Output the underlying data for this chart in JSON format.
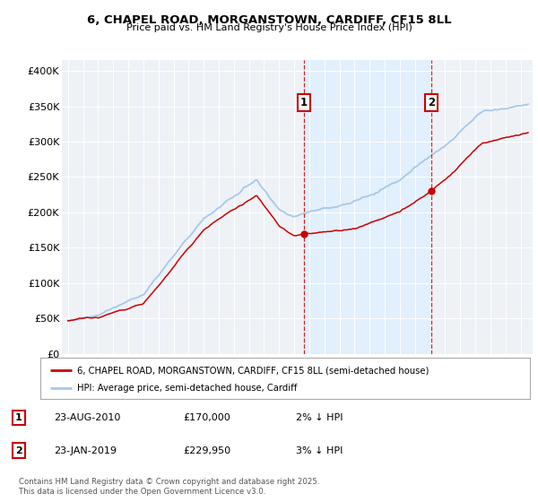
{
  "title": "6, CHAPEL ROAD, MORGANSTOWN, CARDIFF, CF15 8LL",
  "subtitle": "Price paid vs. HM Land Registry's House Price Index (HPI)",
  "ylabel_ticks": [
    "£0",
    "£50K",
    "£100K",
    "£150K",
    "£200K",
    "£250K",
    "£300K",
    "£350K",
    "£400K"
  ],
  "ytick_values": [
    0,
    50000,
    100000,
    150000,
    200000,
    250000,
    300000,
    350000,
    400000
  ],
  "ylim": [
    0,
    415000
  ],
  "xlim_start": 1994.6,
  "xlim_end": 2025.8,
  "line1_label": "6, CHAPEL ROAD, MORGANSTOWN, CARDIFF, CF15 8LL (semi-detached house)",
  "line2_label": "HPI: Average price, semi-detached house, Cardiff",
  "line1_color": "#cc0000",
  "line2_color": "#a8c8e8",
  "sale1_date": 2010.64,
  "sale1_price": 170000,
  "sale2_date": 2019.07,
  "sale2_price": 229950,
  "vline_color": "#cc0000",
  "annotation_box_color": "#cc0000",
  "shade_color": "#ddeeff",
  "table_row1": [
    "1",
    "23-AUG-2010",
    "£170,000",
    "2% ↓ HPI"
  ],
  "table_row2": [
    "2",
    "23-JAN-2019",
    "£229,950",
    "3% ↓ HPI"
  ],
  "footer": "Contains HM Land Registry data © Crown copyright and database right 2025.\nThis data is licensed under the Open Government Licence v3.0.",
  "background_color": "#ffffff",
  "plot_bg_color": "#eef2f7"
}
